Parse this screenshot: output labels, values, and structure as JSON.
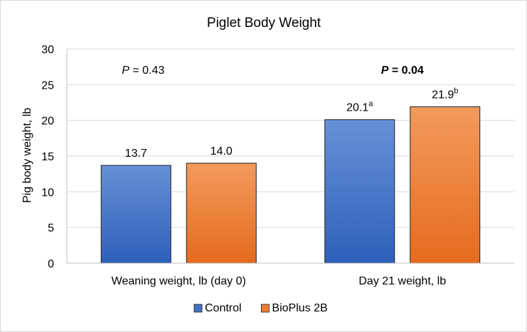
{
  "chart_data": {
    "type": "bar",
    "title": "Piglet Body Weight",
    "xlabel": "",
    "ylabel": "Pig body weight, lb",
    "ylim": [
      0,
      30
    ],
    "yticks": [
      "0",
      "5",
      "10",
      "15",
      "20",
      "25",
      "30"
    ],
    "grid": true,
    "categories": [
      "Weaning weight, lb (day 0)",
      "Day 21 weight, lb"
    ],
    "series": [
      {
        "name": "Control",
        "color": "#4472c4",
        "values": [
          13.7,
          20.1
        ],
        "labels": [
          "13.7",
          "20.1"
        ],
        "superscripts": [
          "",
          "a"
        ]
      },
      {
        "name": "BioPlus 2B",
        "color": "#ed7d31",
        "values": [
          14.0,
          21.9
        ],
        "labels": [
          "14.0",
          "21.9"
        ],
        "superscripts": [
          "",
          "b"
        ]
      }
    ],
    "annotations": [
      {
        "p_label": "P",
        "rest": " = 0.43",
        "bold": false
      },
      {
        "p_label": "P",
        "rest": " = 0.04",
        "bold": true
      }
    ],
    "legend_position": "bottom"
  }
}
